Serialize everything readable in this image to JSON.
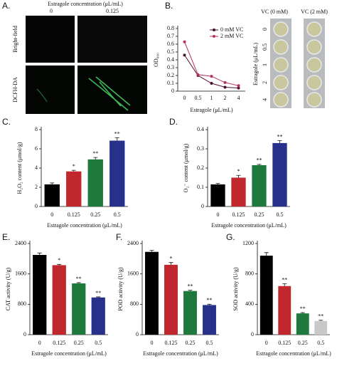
{
  "panel_a": {
    "label": "A.",
    "title": "Estragole concentration (μL/mL)",
    "columns": [
      "0",
      "0.125"
    ],
    "rows": [
      "Bright-field",
      "DCFH-DA"
    ]
  },
  "plate": {
    "columns": [
      "VC (0 mM)",
      "VC (2 mM)"
    ],
    "y_label": "Estragole (μL/mL)",
    "rows": [
      "0",
      "0.5",
      "1",
      "2",
      "4"
    ]
  },
  "chart_data": [
    {
      "type": "line",
      "panel_label": "B.",
      "y_label": "OD₆₀₀",
      "x_label": "Estragole (μL/mL)",
      "categories": [
        "0",
        "0.5",
        "1",
        "2",
        "4"
      ],
      "series": [
        {
          "name": "0 mM VC",
          "color": "#4a1030",
          "values": [
            0.46,
            0.2,
            0.1,
            0.05,
            0.04
          ]
        },
        {
          "name": "2 mM VC",
          "color": "#b8305a",
          "values": [
            0.63,
            0.21,
            0.19,
            0.11,
            0.07
          ]
        }
      ],
      "ylim": [
        0,
        0.8
      ],
      "yticks": [
        0,
        0.1,
        0.2,
        0.3,
        0.4,
        0.5,
        0.6,
        0.7,
        0.8
      ],
      "legend": "top-right"
    },
    {
      "type": "bar",
      "panel_label": "C.",
      "y_label": "H₂O₂ content (μmol/g)",
      "x_label": "Estragole concentration (μL/mL)",
      "categories": [
        "0",
        "0.125",
        "0.25",
        "0.5"
      ],
      "values": [
        2.3,
        3.65,
        4.9,
        6.85
      ],
      "errors": [
        0.15,
        0.12,
        0.2,
        0.3
      ],
      "significance": [
        null,
        "*",
        "**",
        "**"
      ],
      "colors": [
        "#000000",
        "#c0282d",
        "#1e7a3c",
        "#27318b"
      ],
      "ylim": [
        0,
        8
      ],
      "yticks": [
        0,
        2,
        4,
        6,
        8
      ]
    },
    {
      "type": "bar",
      "panel_label": "D.",
      "y_label": "O₂⁻ content (μmol/g)",
      "x_label": "Estragole concentration (μL/mL)",
      "categories": [
        "0",
        "0.125",
        "0.25",
        "0.5"
      ],
      "values": [
        0.115,
        0.15,
        0.215,
        0.33
      ],
      "errors": [
        0.005,
        0.012,
        0.004,
        0.012
      ],
      "significance": [
        null,
        "*",
        "**",
        "**"
      ],
      "colors": [
        "#000000",
        "#c0282d",
        "#1e7a3c",
        "#27318b"
      ],
      "ylim": [
        0,
        0.4
      ],
      "yticks": [
        0,
        0.1,
        0.2,
        0.3,
        0.4
      ]
    },
    {
      "type": "bar",
      "panel_label": "E.",
      "y_label": "CAT activity (U/g)",
      "x_label": "Estragole concentration (μL/mL)",
      "categories": [
        "0",
        "0.125",
        "0.25",
        "0.5"
      ],
      "values": [
        2100,
        1830,
        1350,
        980
      ],
      "errors": [
        50,
        20,
        20,
        15
      ],
      "significance": [
        null,
        "*",
        "**",
        "**"
      ],
      "colors": [
        "#000000",
        "#c0282d",
        "#1e7a3c",
        "#27318b"
      ],
      "ylim": [
        0,
        2400
      ],
      "yticks": [
        0,
        800,
        1600,
        2400
      ]
    },
    {
      "type": "bar",
      "panel_label": "F.",
      "y_label": "POD activity (U/g)",
      "x_label": "Estragole concentration (μL/mL)",
      "categories": [
        "0",
        "0.125",
        "0.25",
        "0.5"
      ],
      "values": [
        2180,
        1840,
        1150,
        780
      ],
      "errors": [
        40,
        60,
        20,
        20
      ],
      "significance": [
        null,
        "*",
        "**",
        "**"
      ],
      "colors": [
        "#000000",
        "#c0282d",
        "#1e7a3c",
        "#27318b"
      ],
      "ylim": [
        0,
        2400
      ],
      "yticks": [
        0,
        800,
        1600,
        2400
      ]
    },
    {
      "type": "bar",
      "panel_label": "G.",
      "y_label": "SOD activity (U/g)",
      "x_label": "Estragole concentration (μL/mL)",
      "categories": [
        "0",
        "0.125",
        "0.25",
        "0.5"
      ],
      "values": [
        1040,
        640,
        280,
        180
      ],
      "errors": [
        40,
        30,
        10,
        10
      ],
      "significance": [
        null,
        "**",
        "**",
        "**"
      ],
      "colors": [
        "#000000",
        "#c0282d",
        "#1e7a3c",
        "#c8c8c8"
      ],
      "ylim": [
        0,
        1200
      ],
      "yticks": [
        0,
        400,
        800,
        1200
      ]
    }
  ]
}
